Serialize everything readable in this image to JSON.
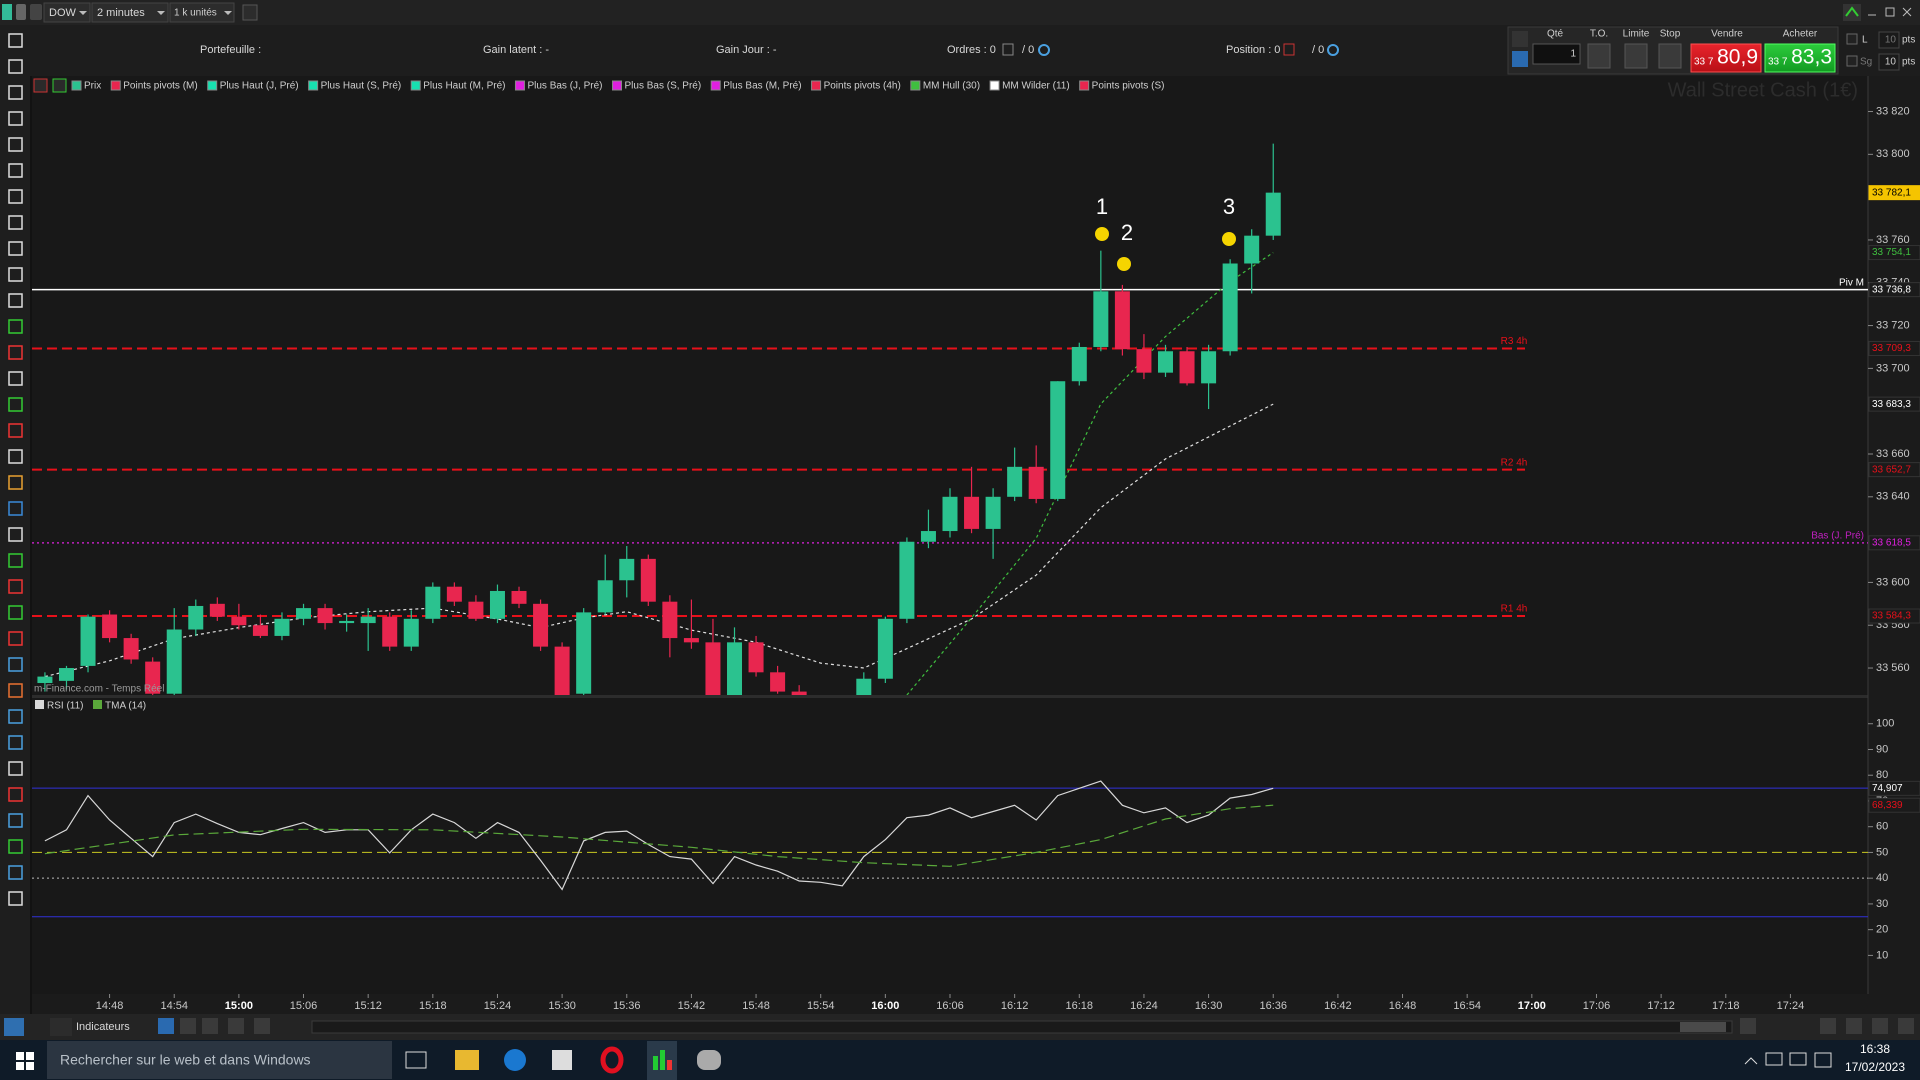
{
  "toolbar": {
    "instrument": "DOW",
    "period": "2 minutes",
    "units": "1 k unités"
  },
  "header": {
    "portfolio": "Portefeuille :",
    "unrealized": "Gain latent : -",
    "day_gain": "Gain Jour : -",
    "orders": "Ordres : 0",
    "orders_total": "/ 0",
    "position": "Position : 0",
    "position_total": "/ 0"
  },
  "order_panel": {
    "qty_label": "Qté",
    "qty": "1",
    "to": "T.O.",
    "limit": "Limite",
    "stop": "Stop",
    "sell": {
      "label": "Vendre",
      "prefix": "33 7",
      "price": "80,9"
    },
    "buy": {
      "label": "Acheter",
      "prefix": "33 7",
      "price": "83,3"
    },
    "l": "L",
    "sg": "Sg",
    "l_pts": "10",
    "l_unit": "pts",
    "sg_pts": "10",
    "sg_unit": "pts"
  },
  "indicator_legend": [
    {
      "name": "Prix",
      "color": "#2bc28f"
    },
    {
      "name": "Points pivots (M)",
      "color": "#e8264f"
    },
    {
      "name": "Plus Haut (J, Pré)",
      "color": "#18e0b0"
    },
    {
      "name": "Plus Haut (S, Pré)",
      "color": "#18e0b0"
    },
    {
      "name": "Plus Haut (M, Pré)",
      "color": "#18e0b0"
    },
    {
      "name": "Plus Bas (J, Pré)",
      "color": "#e020e0"
    },
    {
      "name": "Plus Bas (S, Pré)",
      "color": "#e020e0"
    },
    {
      "name": "Plus Bas (M, Pré)",
      "color": "#e020e0"
    },
    {
      "name": "Points pivots (4h)",
      "color": "#e8264f"
    },
    {
      "name": "MM Hull (30)",
      "color": "#3fbf3f"
    },
    {
      "name": "MM Wilder (11)",
      "color": "#ffffff"
    },
    {
      "name": "Points pivots (S)",
      "color": "#e8264f"
    }
  ],
  "watermark": "Wall Street Cash (1€)",
  "source": "m-Finance.com - Temps Réel",
  "annotations": [
    "1",
    "2",
    "3"
  ],
  "bottom_toolbar": {
    "indicators": "Indicateurs"
  },
  "taskbar": {
    "search": "Rechercher sur le web et dans Windows",
    "time": "16:38",
    "date": "17/02/2023"
  },
  "chart_data": [
    {
      "type": "candlestick",
      "up_color": "#2bc28f",
      "down_color": "#e8264f",
      "x": [
        882,
        884,
        886,
        888,
        890,
        892,
        894,
        896,
        898,
        900,
        902,
        904,
        906,
        908,
        910,
        912,
        914,
        916,
        918,
        920,
        922,
        924,
        926,
        928,
        930,
        932,
        934,
        936,
        938,
        940,
        942,
        944,
        946,
        948,
        950,
        952,
        954,
        956,
        958,
        960,
        962,
        964,
        966,
        968,
        970,
        972,
        974,
        976,
        978,
        980,
        982,
        984,
        986,
        988,
        990,
        992,
        994,
        996
      ],
      "open": [
        33553,
        33554,
        33561,
        33585,
        33574,
        33563,
        33548,
        33578,
        33590,
        33584,
        33580,
        33575,
        33583,
        33588,
        33581,
        33581,
        33584,
        33570,
        33583,
        33598,
        33591,
        33583,
        33596,
        33590,
        33570,
        33548,
        33586,
        33601,
        33611,
        33591,
        33574,
        33572,
        33547,
        33572,
        33558,
        33549,
        33542,
        33538,
        33536,
        33555,
        33583,
        33619,
        33624,
        33640,
        33625,
        33640,
        33654,
        33639,
        33694,
        33710,
        33736,
        33709,
        33698,
        33708,
        33693,
        33708,
        33749,
        33762
      ],
      "high": [
        33558,
        33561,
        33585,
        33587,
        33576,
        33565,
        33588,
        33592,
        33593,
        33590,
        33585,
        33586,
        33590,
        33590,
        33585,
        33588,
        33586,
        33587,
        33600,
        33600,
        33594,
        33599,
        33598,
        33592,
        33572,
        33588,
        33613,
        33617,
        33613,
        33594,
        33592,
        33583,
        33579,
        33575,
        33561,
        33552,
        33546,
        33545,
        33558,
        33584,
        33621,
        33634,
        33644,
        33654,
        33644,
        33663,
        33664,
        33694,
        33712,
        33755,
        33739,
        33716,
        33711,
        33710,
        33711,
        33751,
        33765,
        33805
      ],
      "low": [
        33549,
        33550,
        33558,
        33572,
        33562,
        33545,
        33545,
        33575,
        33582,
        33578,
        33574,
        33573,
        33580,
        33578,
        33577,
        33568,
        33568,
        33568,
        33581,
        33589,
        33582,
        33581,
        33588,
        33568,
        33545,
        33546,
        33585,
        33593,
        33589,
        33565,
        33569,
        33546,
        33546,
        33556,
        33548,
        33540,
        33535,
        33532,
        33534,
        33553,
        33581,
        33616,
        33621,
        33623,
        33611,
        33638,
        33637,
        33638,
        33692,
        33708,
        33706,
        33695,
        33696,
        33692,
        33681,
        33706,
        33735,
        33760
      ],
      "close": [
        33556,
        33560,
        33584,
        33574,
        33564,
        33548,
        33578,
        33589,
        33584,
        33580,
        33575,
        33583,
        33588,
        33581,
        33582,
        33584,
        33570,
        33583,
        33598,
        33591,
        33583,
        33596,
        33590,
        33570,
        33547,
        33586,
        33601,
        33611,
        33591,
        33574,
        33572,
        33547,
        33572,
        33558,
        33549,
        33542,
        33538,
        33536,
        33555,
        33583,
        33619,
        33624,
        33640,
        33625,
        33640,
        33654,
        33639,
        33694,
        33710,
        33736,
        33709,
        33698,
        33708,
        33693,
        33708,
        33749,
        33762,
        33782.1
      ],
      "overlays": [
        {
          "color": "#e0e0e0",
          "x": [
            882,
            888,
            894,
            900,
            906,
            912,
            918,
            924,
            928,
            932,
            936,
            942,
            948,
            954,
            958,
            962,
            968,
            974,
            980,
            986,
            992,
            996
          ],
          "values": [
            33556,
            33563.4,
            33573.7,
            33578.9,
            33583.4,
            33586.3,
            33588,
            33582.9,
            33578.9,
            33583.4,
            33586.3,
            33577.7,
            33572,
            33562.3,
            33560,
            33569.1,
            33582.9,
            33603.4,
            33634.9,
            33657.7,
            33673.1,
            33683.3
          ]
        },
        {
          "color": "#3fbf3f",
          "x": [
            962,
            968,
            974,
            980,
            986,
            992,
            996
          ],
          "values": [
            33547.4,
            33583.4,
            33620.6,
            33683.4,
            33714.9,
            33740.6,
            33754.1
          ]
        }
      ],
      "levels": [
        {
          "name": "Piv M",
          "value": 33736.8,
          "color": "#ffffff",
          "style": "solid"
        },
        {
          "name": "R3 4h",
          "value": 33709.3,
          "color": "#e8101a",
          "style": "dashed"
        },
        {
          "name": "R2 4h",
          "value": 33652.7,
          "color": "#e8101a",
          "style": "dashed"
        },
        {
          "name": "Bas (J. Pré)",
          "value": 33618.5,
          "color": "#c020c0",
          "style": "dotted"
        },
        {
          "name": "R1 4h",
          "value": 33584.3,
          "color": "#e8101a",
          "style": "dashed"
        }
      ],
      "tags": [
        {
          "value": 33782.1,
          "label": "33 782,1",
          "color": "#000000",
          "fill": "#f5c400"
        },
        {
          "value": 33754.1,
          "label": "33 754,1",
          "color": "#3fbf3f"
        },
        {
          "value": 33736.8,
          "label": "33 736,8",
          "color": "#ffffff"
        },
        {
          "value": 33709.3,
          "label": "33 709,3",
          "color": "#e8101a"
        },
        {
          "value": 33683.3,
          "label": "33 683,3",
          "color": "#ffffff"
        },
        {
          "value": 33652.7,
          "label": "33 652,7",
          "color": "#e8101a"
        },
        {
          "value": 33618.5,
          "label": "33 618,5",
          "color": "#e020e0"
        },
        {
          "value": 33584.3,
          "label": "33 584,3",
          "color": "#e8101a"
        }
      ],
      "xlim": [
        880.8,
        1051.2
      ],
      "xticks": [
        {
          "value": 888,
          "label": "14:48"
        },
        {
          "value": 894,
          "label": "14:54"
        },
        {
          "value": 900,
          "label": "15:00"
        },
        {
          "value": 906,
          "label": "15:06"
        },
        {
          "value": 912,
          "label": "15:12"
        },
        {
          "value": 918,
          "label": "15:18"
        },
        {
          "value": 924,
          "label": "15:24"
        },
        {
          "value": 930,
          "label": "15:30"
        },
        {
          "value": 936,
          "label": "15:36"
        },
        {
          "value": 942,
          "label": "15:42"
        },
        {
          "value": 948,
          "label": "15:48"
        },
        {
          "value": 954,
          "label": "15:54"
        },
        {
          "value": 960,
          "label": "16:00"
        },
        {
          "value": 966,
          "label": "16:06"
        },
        {
          "value": 972,
          "label": "16:12"
        },
        {
          "value": 978,
          "label": "16:18"
        },
        {
          "value": 984,
          "label": "16:24"
        },
        {
          "value": 990,
          "label": "16:30"
        },
        {
          "value": 996,
          "label": "16:36"
        },
        {
          "value": 1002,
          "label": "16:42"
        },
        {
          "value": 1008,
          "label": "16:48"
        },
        {
          "value": 1014,
          "label": "16:54"
        },
        {
          "value": 1020,
          "label": "17:00"
        },
        {
          "value": 1026,
          "label": "17:06"
        },
        {
          "value": 1032,
          "label": "17:12"
        },
        {
          "value": 1038,
          "label": "17:18"
        },
        {
          "value": 1044,
          "label": "17:24"
        }
      ],
      "ylim": [
        33547.4,
        33836.6
      ],
      "yticks": [
        {
          "value": 33820,
          "label": "33 820"
        },
        {
          "value": 33800,
          "label": "33 800"
        },
        {
          "value": 33760,
          "label": "33 760"
        },
        {
          "value": 33740,
          "label": "33 740"
        },
        {
          "value": 33720,
          "label": "33 720"
        },
        {
          "value": 33700,
          "label": "33 700"
        },
        {
          "value": 33660,
          "label": "33 660"
        },
        {
          "value": 33640,
          "label": "33 640"
        },
        {
          "value": 33600,
          "label": "33 600"
        },
        {
          "value": 33580,
          "label": "33 580"
        },
        {
          "value": 33560,
          "label": "33 560"
        }
      ],
      "grid": false
    },
    {
      "type": "line",
      "series": [
        {
          "name": "RSI (11)",
          "color": "#d8d8d8",
          "style": "solid",
          "x": [
            882,
            884,
            886,
            888,
            890,
            892,
            894,
            896,
            898,
            900,
            902,
            904,
            906,
            908,
            910,
            912,
            914,
            916,
            918,
            920,
            922,
            924,
            926,
            928,
            930,
            932,
            934,
            936,
            938,
            940,
            942,
            944,
            946,
            948,
            950,
            952,
            954,
            956,
            958,
            960,
            962,
            964,
            966,
            968,
            970,
            972,
            974,
            976,
            978,
            980,
            982,
            984,
            986,
            988,
            990,
            992,
            994,
            996
          ],
          "values": [
            54.5,
            58.8,
            72.1,
            62.6,
            55.5,
            48.4,
            61.6,
            64.9,
            61.2,
            57.8,
            56.9,
            59.3,
            61.6,
            57.8,
            58.8,
            58.8,
            49.8,
            58.8,
            64.9,
            61.6,
            55.5,
            61.6,
            57.8,
            46.9,
            35.6,
            54.5,
            57.8,
            58.3,
            53.1,
            48.4,
            47.4,
            37.9,
            48.4,
            45.1,
            42.7,
            38.9,
            38.4,
            37,
            48.4,
            55,
            63.5,
            64.5,
            67.3,
            63.5,
            65.9,
            68.3,
            62.6,
            72.1,
            74.9,
            77.7,
            68.3,
            65.4,
            67.3,
            61.6,
            64.5,
            71.1,
            72.5,
            74.907
          ]
        },
        {
          "name": "TMA (14)",
          "color": "#5aa83a",
          "style": "dashed",
          "x": [
            882,
            894,
            906,
            918,
            930,
            942,
            950,
            958,
            966,
            974,
            980,
            986,
            992,
            996
          ],
          "values": [
            49.5,
            56.8,
            59,
            58.8,
            56,
            52,
            48.4,
            46,
            44.6,
            50,
            55,
            63,
            67,
            68.339
          ]
        }
      ],
      "hlines": [
        {
          "value": 75,
          "color": "#3030d8",
          "style": "solid"
        },
        {
          "value": 25,
          "color": "#3030d8",
          "style": "solid"
        },
        {
          "value": 50,
          "color": "#c8c820",
          "style": "dashed"
        },
        {
          "value": 40,
          "color": "#bbbbbb",
          "style": "dotted"
        }
      ],
      "tags": [
        {
          "value": 74.907,
          "label": "74,907",
          "color": "#ffffff"
        },
        {
          "value": 68.339,
          "label": "68,339",
          "color": "#e8101a"
        }
      ],
      "xlim": [
        880.8,
        1051.2
      ],
      "ylim": [
        -5,
        110
      ],
      "yticks": [
        10,
        20,
        30,
        40,
        50,
        60,
        70,
        80,
        90,
        100
      ],
      "grid": false
    }
  ]
}
